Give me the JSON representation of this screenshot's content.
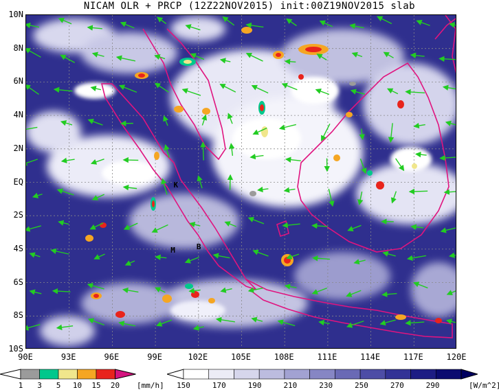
{
  "title": "NICAM OLR + PRCP (12Z22NOV2015) init:00Z19NOV2015 slab",
  "map": {
    "lat_labels": [
      "10N",
      "8N",
      "6N",
      "4N",
      "2N",
      "EQ",
      "2S",
      "4S",
      "6S",
      "8S",
      "10S"
    ],
    "lon_labels": [
      "90E",
      "93E",
      "96E",
      "99E",
      "102E",
      "105E",
      "108E",
      "111E",
      "114E",
      "117E",
      "120E"
    ],
    "lon_range": [
      90,
      120
    ],
    "lat_range": [
      -10,
      10
    ],
    "gridlines": true,
    "coastline_color": "#e0147f",
    "wind_vector_color": "#22cc22",
    "place_labels": [
      {
        "text": "K",
        "lon": 100.5,
        "lat": -0.2
      },
      {
        "text": "M",
        "lon": 100.3,
        "lat": -4.1
      },
      {
        "text": "B",
        "lon": 102.1,
        "lat": -3.9
      }
    ]
  },
  "precip_colorbar": {
    "ticks": [
      "1",
      "3",
      "5",
      "10",
      "15",
      "20"
    ],
    "unit": "[mm/h]",
    "colors": [
      "#9b9b9b",
      "#00c88c",
      "#f0e68c",
      "#f5a623",
      "#e8241c",
      "#d4147f"
    ]
  },
  "olr_colorbar": {
    "ticks": [
      "150",
      "170",
      "190",
      "210",
      "230",
      "250",
      "270",
      "290"
    ],
    "unit": "[W/m^2]",
    "colors": [
      "#ffffff",
      "#ececf6",
      "#d6d6ec",
      "#bcbcdf",
      "#a2a2d2",
      "#8686c4",
      "#6a6ab5",
      "#4d4da6",
      "#333396",
      "#1c1c84",
      "#0a0a70"
    ]
  }
}
